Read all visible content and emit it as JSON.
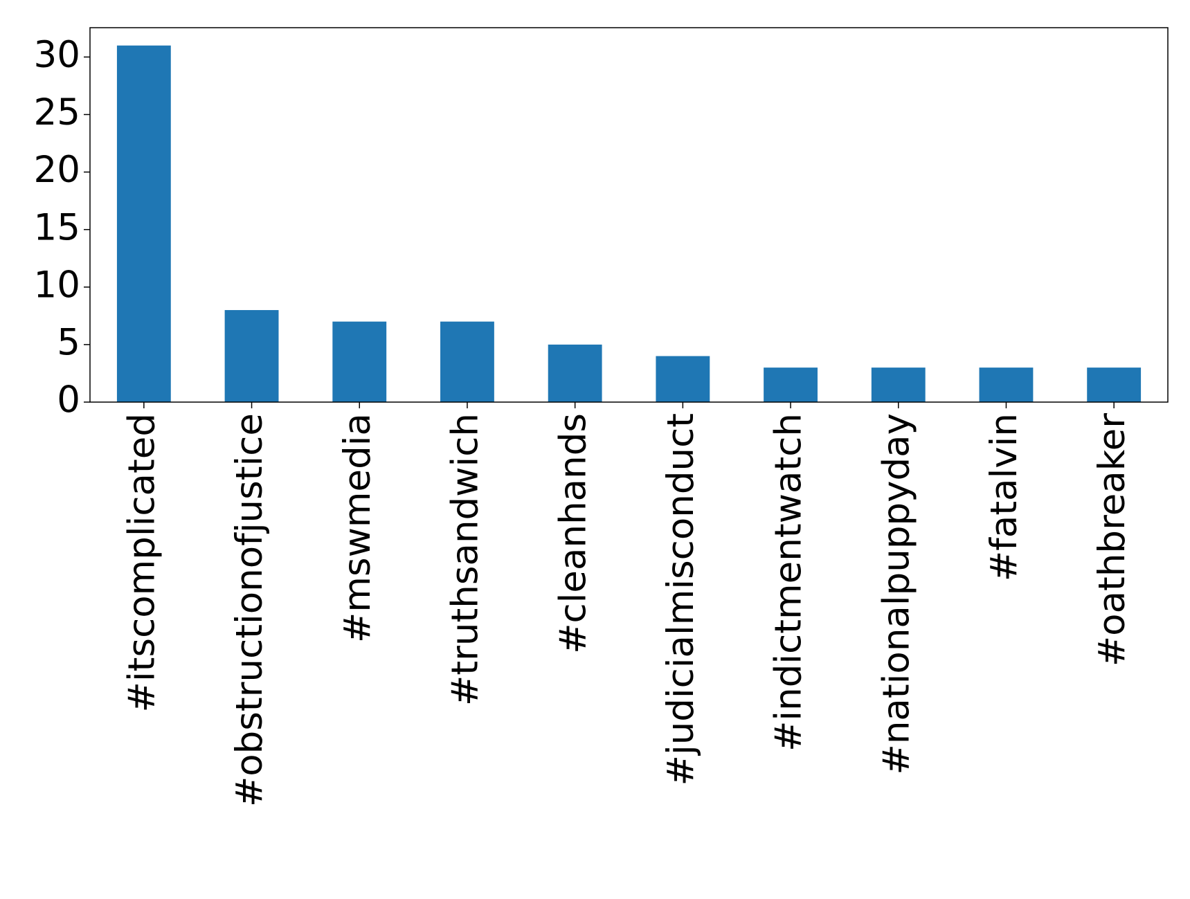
{
  "chart_data": {
    "type": "bar",
    "categories": [
      "#itscomplicated",
      "#obstructionofjustice",
      "#mswmedia",
      "#truthsandwich",
      "#cleanhands",
      "#judicialmisconduct",
      "#indictmentwatch",
      "#nationalpuppyday",
      "#fatalvin",
      "#oathbreaker"
    ],
    "values": [
      31,
      8,
      7,
      7,
      5,
      4,
      3,
      3,
      3,
      3
    ],
    "color": "#1f77b4",
    "ylim": [
      0,
      32.55
    ],
    "yticks": [
      0,
      5,
      10,
      15,
      20,
      25,
      30
    ],
    "grid": false
  }
}
